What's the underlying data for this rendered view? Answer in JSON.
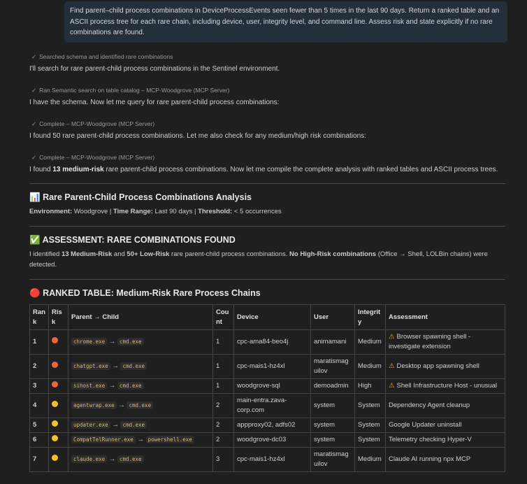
{
  "prompt": "Find parent–child process combinations in DeviceProcessEvents seen fewer than 5 times in the last 90 days. Return a ranked table and an ASCII process tree for each rare chain, including device, user, integrity level, and command line. Assess risk and state explicitly if no rare combinations are found.",
  "steps": [
    {
      "label": "Searched schema and identified rare combinations",
      "text": "I'll search for rare parent-child process combinations in the Sentinel environment."
    },
    {
      "label": "Ran Semantic search on table catalog – MCP-Woodgrove (MCP Server)",
      "text": "I have the schema. Now let me query for rare parent-child process combinations:"
    },
    {
      "label": "Complete – MCP-Woodgrove (MCP Server)",
      "text": "I found 50 rare parent-child process combinations. Let me also check for any medium/high risk combinations:"
    },
    {
      "label": "Complete – MCP-Woodgrove (MCP Server)",
      "text_pre": "I found ",
      "text_bold": "13 medium-risk",
      "text_post": " rare parent-child process combinations. Now let me compile the complete analysis with ranked tables and ASCII process trees."
    }
  ],
  "analysis": {
    "icon": "📊",
    "title": "Rare Parent-Child Process Combinations Analysis",
    "env_label": "Environment:",
    "env": " Woodgrove | ",
    "range_label": "Time Range:",
    "range": " Last 90 days | ",
    "threshold_label": "Threshold:",
    "threshold": " < 5 occurrences"
  },
  "assessment": {
    "icon": "✅",
    "title": "ASSESSMENT: RARE COMBINATIONS FOUND",
    "p1": "I identified ",
    "b1": "13 Medium-Risk",
    "p2": " and ",
    "b2": "50+ Low-Risk",
    "p3": " rare parent-child process combinations. ",
    "b3": "No High-Risk combinations",
    "p4": " (Office → Shell, LOLBin chains) were detected."
  },
  "ranked": {
    "icon": "🔴",
    "title": "RANKED TABLE: Medium-Risk Rare Process Chains",
    "headers": [
      "Rank",
      "Risk",
      "Parent → Child",
      "Count",
      "Device",
      "User",
      "Integrity",
      "Assessment"
    ],
    "arrow": "→",
    "warn_icon": "⚠",
    "colors": {
      "orange": "#f0643c",
      "yellow": "#f0c030"
    },
    "rows": [
      {
        "rank": "1",
        "risk": "orange",
        "parent": "chrome.exe",
        "child": "cmd.exe",
        "count": "1",
        "device": "cpc-ama84-beo4j",
        "user": "animamani",
        "integrity": "Medium",
        "warn": true,
        "assessment": "Browser spawning shell - investigate extension"
      },
      {
        "rank": "2",
        "risk": "orange",
        "parent": "chatgpt.exe",
        "child": "cmd.exe",
        "count": "1",
        "device": "cpc-mais1-hz4xl",
        "user": "maratismaguilov",
        "integrity": "Medium",
        "warn": true,
        "assessment": "Desktop app spawning shell"
      },
      {
        "rank": "3",
        "risk": "orange",
        "parent": "sihost.exe",
        "child": "cmd.exe",
        "count": "1",
        "device": "woodgrove-sql",
        "user": "demoadmin",
        "integrity": "High",
        "warn": true,
        "assessment": "Shell Infrastructure Host - unusual"
      },
      {
        "rank": "4",
        "risk": "yellow",
        "parent": "agentwrap.exe",
        "child": "cmd.exe",
        "count": "2",
        "device": "main-entra.zava-corp.com",
        "user": "system",
        "integrity": "System",
        "warn": false,
        "assessment": "Dependency Agent cleanup"
      },
      {
        "rank": "5",
        "risk": "yellow",
        "parent": "updater.exe",
        "child": "cmd.exe",
        "count": "2",
        "device": "appproxy02, adfs02",
        "user": "system",
        "integrity": "System",
        "warn": false,
        "assessment": "Google Updater uninstall"
      },
      {
        "rank": "6",
        "risk": "yellow",
        "parent": "CompatTelRunner.exe",
        "child": "powershell.exe",
        "count": "2",
        "device": "woodgrove-dc03",
        "user": "system",
        "integrity": "System",
        "warn": false,
        "assessment": "Telemetry checking Hyper-V"
      },
      {
        "rank": "7",
        "risk": "yellow",
        "parent": "claude.exe",
        "child": "cmd.exe",
        "count": "3",
        "device": "cpc-mais1-hz4xl",
        "user": "maratismaguilov",
        "integrity": "Medium",
        "warn": false,
        "assessment": "Claude AI running npx MCP"
      }
    ]
  }
}
